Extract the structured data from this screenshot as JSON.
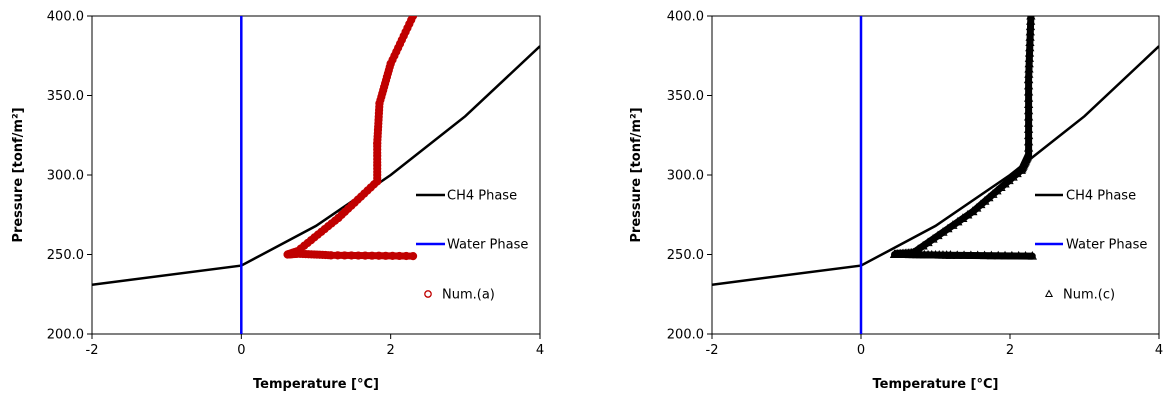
{
  "chart_data": [
    {
      "type": "line",
      "xlabel": "Temperature [°C]",
      "ylabel": "Pressure [tonf/m²]",
      "xlim": [
        -2,
        4
      ],
      "ylim": [
        200,
        400
      ],
      "x_ticks": [
        "-2",
        "0",
        "2",
        "4"
      ],
      "y_ticks": [
        "200.0",
        "250.0",
        "300.0",
        "350.0",
        "400.0"
      ],
      "grid": false,
      "legend_position": "right",
      "series": [
        {
          "name": "CH4 Phase",
          "style": "line",
          "color": "#000000",
          "points": [
            [
              -2,
              231
            ],
            [
              0,
              243
            ],
            [
              1,
              268
            ],
            [
              2,
              300
            ],
            [
              3,
              337
            ],
            [
              4,
              381
            ]
          ]
        },
        {
          "name": "Water Phase",
          "style": "line",
          "color": "#0000ff",
          "points": [
            [
              0,
              200
            ],
            [
              0,
              400
            ]
          ]
        },
        {
          "name": "Num.(a)",
          "style": "thick-trajectory",
          "marker": "circle",
          "color": "#c00000",
          "points": [
            [
              2.3,
              249
            ],
            [
              1.2,
              249.5
            ],
            [
              0.75,
              250.5
            ],
            [
              0.62,
              250
            ],
            [
              0.75,
              252
            ],
            [
              1.3,
              273
            ],
            [
              1.82,
              296
            ],
            [
              1.82,
              320
            ],
            [
              1.85,
              345
            ],
            [
              2.0,
              370
            ],
            [
              2.3,
              400
            ]
          ]
        }
      ]
    },
    {
      "type": "line",
      "xlabel": "Temperature [°C]",
      "ylabel": "Pressure [tonf/m²]",
      "xlim": [
        -2,
        4
      ],
      "ylim": [
        200,
        400
      ],
      "x_ticks": [
        "-2",
        "0",
        "2",
        "4"
      ],
      "y_ticks": [
        "200.0",
        "250.0",
        "300.0",
        "350.0",
        "400.0"
      ],
      "grid": false,
      "legend_position": "right",
      "series": [
        {
          "name": "CH4 Phase",
          "style": "line",
          "color": "#000000",
          "points": [
            [
              -2,
              231
            ],
            [
              0,
              243
            ],
            [
              1,
              268
            ],
            [
              2,
              300
            ],
            [
              3,
              337
            ],
            [
              4,
              381
            ]
          ]
        },
        {
          "name": "Water Phase",
          "style": "line",
          "color": "#0000ff",
          "points": [
            [
              0,
              200
            ],
            [
              0,
              400
            ]
          ]
        },
        {
          "name": "Num.(c)",
          "style": "thick-trajectory",
          "marker": "triangle",
          "color": "#000000",
          "points": [
            [
              2.3,
              249
            ],
            [
              1.2,
              249.5
            ],
            [
              0.6,
              250
            ],
            [
              0.45,
              250
            ],
            [
              0.7,
              251
            ],
            [
              1.5,
              277
            ],
            [
              2.15,
              303
            ],
            [
              2.25,
              313
            ],
            [
              2.25,
              360
            ],
            [
              2.28,
              400
            ]
          ]
        }
      ]
    }
  ]
}
